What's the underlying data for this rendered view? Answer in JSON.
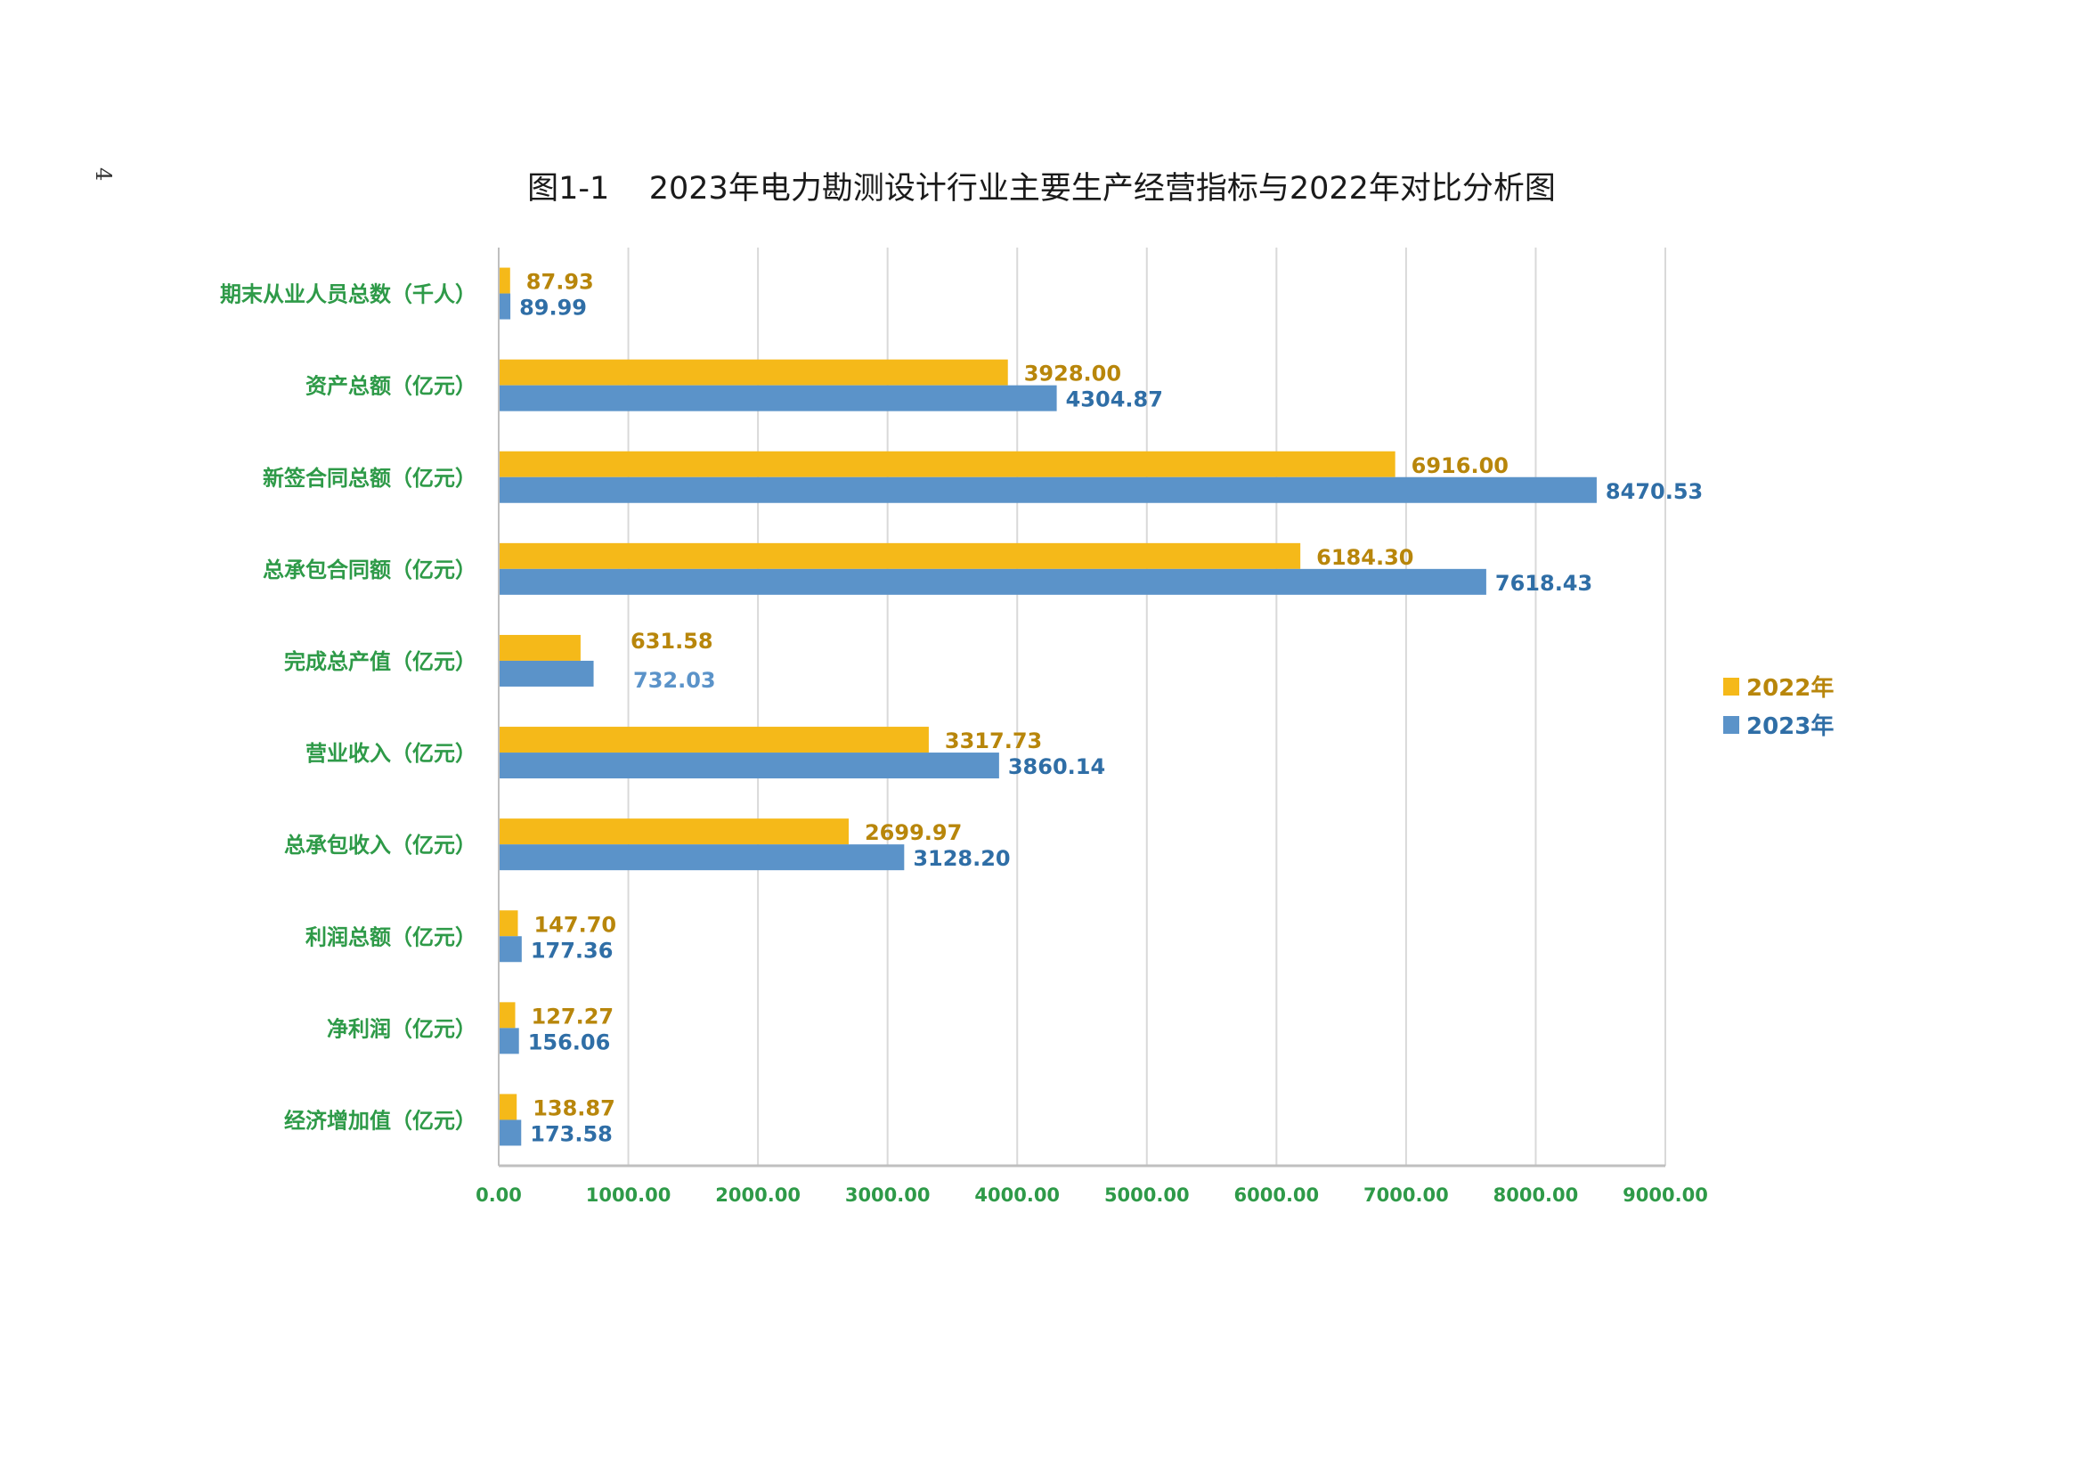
{
  "page": {
    "number": "4"
  },
  "colors": {
    "y2022": "#f5b919",
    "y2023": "#5b93c9",
    "axis_text": "#2e9a48",
    "grid": "#d9d9d9"
  },
  "chart_data": {
    "type": "bar",
    "orientation": "horizontal",
    "title": "图1-1    2023年电力勘测设计行业主要生产经营指标与2022年对比分析图",
    "categories": [
      "期末从业人员总数（千人）",
      "资产总额（亿元）",
      "新签合同总额（亿元）",
      "总承包合同额（亿元）",
      "完成总产值（亿元）",
      "营业收入（亿元）",
      "总承包收入（亿元）",
      "利润总额（亿元）",
      "净利润（亿元）",
      "经济增加值（亿元）"
    ],
    "series": [
      {
        "name": "2022年",
        "values": [
          87.93,
          3928.0,
          6916.0,
          6184.3,
          631.58,
          3317.73,
          2699.97,
          147.7,
          127.27,
          138.87
        ],
        "labels": [
          "87.93",
          "3928.00",
          "6916.00",
          "6184.30",
          "631.58",
          "3317.73",
          "2699.97",
          "147.70",
          "127.27",
          "138.87"
        ]
      },
      {
        "name": "2023年",
        "values": [
          89.99,
          4304.87,
          8470.53,
          7618.43,
          732.03,
          3860.14,
          3128.2,
          177.36,
          156.06,
          173.58
        ],
        "labels": [
          "89.99",
          "4304.87",
          "8470.53",
          "7618.43",
          "732.03",
          "3860.14",
          "3128.20",
          "177.36",
          "156.06",
          "173.58"
        ]
      }
    ],
    "xlim": [
      0,
      9000
    ],
    "x_ticks": [
      0,
      1000,
      2000,
      3000,
      4000,
      5000,
      6000,
      7000,
      8000,
      9000
    ],
    "x_tick_labels": [
      "0.00",
      "1000.00",
      "2000.00",
      "3000.00",
      "4000.00",
      "5000.00",
      "6000.00",
      "7000.00",
      "8000.00",
      "9000.00"
    ],
    "grid": true,
    "legend": "right"
  }
}
